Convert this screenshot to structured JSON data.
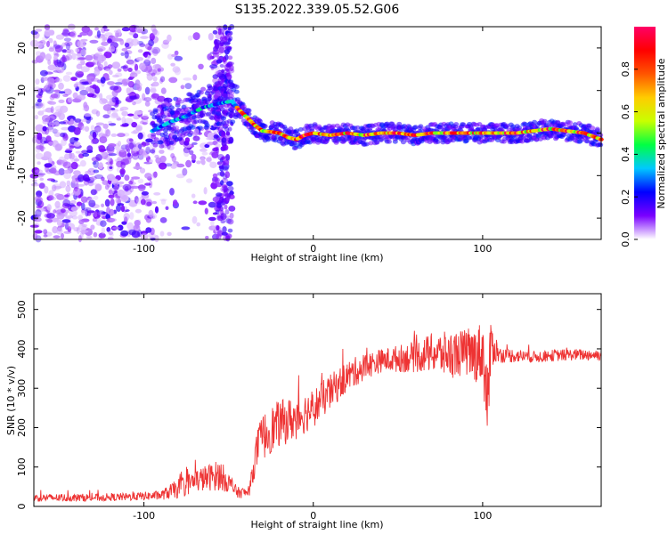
{
  "title": "S135.2022.339.05.52.G06",
  "chart_data": [
    {
      "type": "heatmap",
      "xlabel": "Height of straight line (km)",
      "ylabel": "Frequency (Hz)",
      "xlim": [
        -165,
        170
      ],
      "ylim": [
        -25,
        25
      ],
      "xticks": [
        -100,
        0,
        100
      ],
      "yticks": [
        -20,
        -10,
        0,
        10,
        20
      ],
      "colorbar": {
        "label": "Normalized spectral amplitude",
        "range": [
          0,
          1
        ],
        "ticks": [
          "0.0",
          "0.2",
          "0.4",
          "0.6",
          "0.8"
        ],
        "tick_values": [
          0,
          0.2,
          0.4,
          0.6,
          0.8
        ],
        "colors": [
          "#ffffff",
          "#7a00ff",
          "#0000ff",
          "#00c8ff",
          "#00ff44",
          "#c8ff00",
          "#ffcc00",
          "#ff5500",
          "#ff0000",
          "#ff0066"
        ]
      },
      "ridge": {
        "x": [
          -95,
          -85,
          -75,
          -65,
          -55,
          -48,
          -44,
          -40,
          -35,
          -30,
          -25,
          -20,
          -15,
          -10,
          -5,
          0,
          10,
          20,
          30,
          40,
          50,
          60,
          70,
          80,
          90,
          100,
          110,
          120,
          130,
          140,
          150,
          160,
          170
        ],
        "y": [
          0.5,
          2.5,
          4,
          6,
          7,
          7.5,
          5.5,
          4,
          2,
          0.5,
          0.3,
          0,
          -1,
          -1.5,
          -0.5,
          0,
          -0.5,
          0,
          -0.5,
          0,
          0,
          -0.5,
          0,
          0,
          0,
          0,
          0,
          0,
          0.5,
          1,
          0.5,
          0,
          -1.5
        ]
      },
      "noise_region": [
        -165,
        -50
      ]
    },
    {
      "type": "line",
      "xlabel": "Height of straight line (km)",
      "ylabel": "SNR (10 * v/v)",
      "xlim": [
        -165,
        170
      ],
      "ylim": [
        0,
        540
      ],
      "xticks": [
        -100,
        0,
        100
      ],
      "yticks": [
        0,
        100,
        200,
        300,
        400,
        500
      ],
      "color": "#ee3333",
      "x": [
        -165,
        -140,
        -110,
        -90,
        -80,
        -70,
        -60,
        -55,
        -50,
        -45,
        -38,
        -33,
        -30,
        -25,
        -20,
        -10,
        0,
        10,
        20,
        30,
        40,
        50,
        60,
        70,
        80,
        90,
        95,
        100,
        103,
        105,
        110,
        130,
        150,
        170
      ],
      "y": [
        22,
        22,
        24,
        28,
        45,
        65,
        75,
        80,
        60,
        35,
        35,
        150,
        175,
        195,
        210,
        225,
        250,
        290,
        330,
        355,
        370,
        375,
        380,
        390,
        385,
        390,
        385,
        395,
        260,
        415,
        385,
        380,
        385,
        385
      ],
      "spread": [
        10,
        10,
        10,
        12,
        25,
        30,
        35,
        40,
        25,
        15,
        12,
        50,
        60,
        60,
        60,
        55,
        50,
        45,
        40,
        35,
        30,
        35,
        40,
        50,
        60,
        60,
        70,
        80,
        120,
        60,
        20,
        15,
        15,
        15
      ]
    }
  ]
}
